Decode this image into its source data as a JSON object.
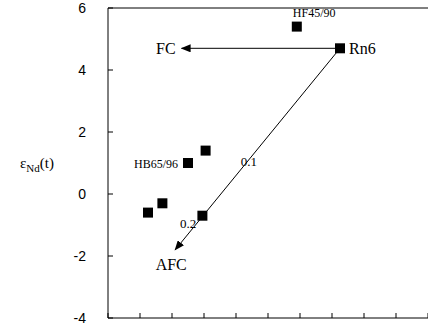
{
  "chart_data": {
    "type": "scatter",
    "y_label": "εNd(t)",
    "x": [
      7.25,
      5.9,
      2.5,
      3.05,
      1.25,
      1.7,
      2.95
    ],
    "values": [
      4.7,
      5.4,
      1.0,
      1.4,
      -0.6,
      -0.3,
      -0.7
    ],
    "point_labels": [
      "Rn6",
      "HF45/90",
      "HB65/96",
      null,
      null,
      null,
      null
    ],
    "color": "#000000",
    "marker": "square",
    "xlim": [
      0,
      10
    ],
    "xticks": [
      0,
      1,
      2,
      3,
      4,
      5,
      6,
      7,
      8,
      9,
      10
    ],
    "ylim": [
      -4,
      6
    ],
    "yticks": [
      -4,
      -2,
      0,
      2,
      4,
      6
    ],
    "tick_labels": "y",
    "grid": false,
    "arrows": [
      {
        "label": "FC",
        "from": [
          7.25,
          4.7
        ],
        "to": [
          2.3,
          4.7
        ]
      },
      {
        "label": "AFC",
        "from": [
          7.25,
          4.7
        ],
        "to": [
          2.1,
          -1.8
        ]
      }
    ],
    "annotations": [
      {
        "text": "0.1",
        "x": 4.4,
        "y": 0.9
      },
      {
        "text": "0.2",
        "x": 2.5,
        "y": -1.1
      }
    ]
  }
}
